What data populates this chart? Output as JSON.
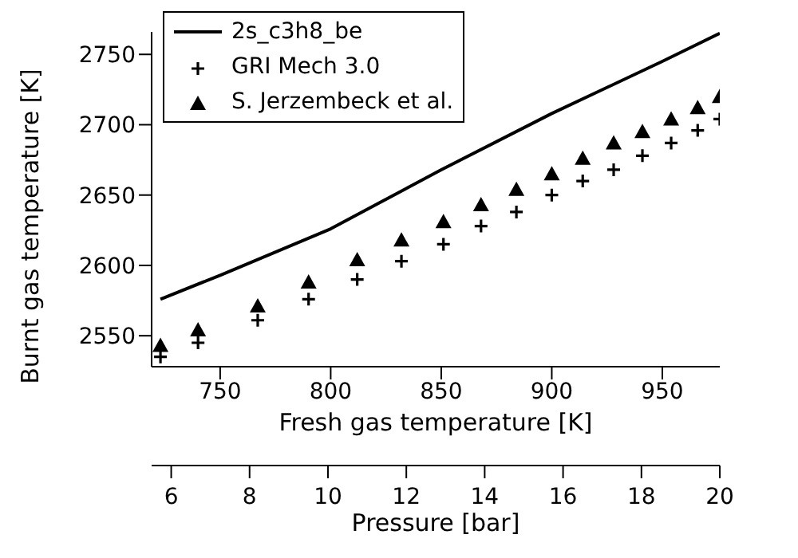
{
  "chart_data": {
    "type": "scatter",
    "xlabel": "Fresh gas temperature [K]",
    "ylabel": "Burnt gas temperature [K]",
    "x2label": "Pressure [bar]",
    "xlim": [
      719,
      976
    ],
    "xticks": [
      750,
      800,
      850,
      900,
      950
    ],
    "ylim": [
      2528,
      2766
    ],
    "yticks": [
      2550,
      2600,
      2650,
      2700,
      2750
    ],
    "x2lim": [
      5.5,
      20
    ],
    "x2ticks": [
      6,
      8,
      10,
      12,
      14,
      16,
      18,
      20
    ],
    "legend": "top left",
    "grid": false,
    "series": [
      {
        "name": "2s_c3h8_be",
        "type": "line",
        "marker": "none",
        "line_style": "solid",
        "color": "#000000",
        "x": [
          723,
          750,
          800,
          850,
          900,
          950,
          976
        ],
        "values": [
          2576,
          2593,
          2626,
          2668,
          2708,
          2745,
          2765
        ]
      },
      {
        "name": "GRI Mech 3.0",
        "marker": "cross",
        "color": "#000000",
        "x": [
          723,
          740,
          767,
          790,
          812,
          832,
          851,
          868,
          884,
          900,
          914,
          928,
          941,
          954,
          966,
          976
        ],
        "values": [
          2535,
          2545,
          2561,
          2576,
          2590,
          2603,
          2615,
          2628,
          2638,
          2650,
          2660,
          2668,
          2678,
          2687,
          2696,
          2704
        ]
      },
      {
        "name": "S. Jerzembeck et al.",
        "marker": "triangle",
        "color": "#000000",
        "x": [
          723,
          740,
          767,
          790,
          812,
          832,
          851,
          868,
          884,
          900,
          914,
          928,
          941,
          954,
          966,
          976
        ],
        "values": [
          2543,
          2554,
          2571,
          2588,
          2604,
          2618,
          2631,
          2643,
          2654,
          2665,
          2676,
          2687,
          2695,
          2704,
          2712,
          2720
        ]
      }
    ]
  }
}
